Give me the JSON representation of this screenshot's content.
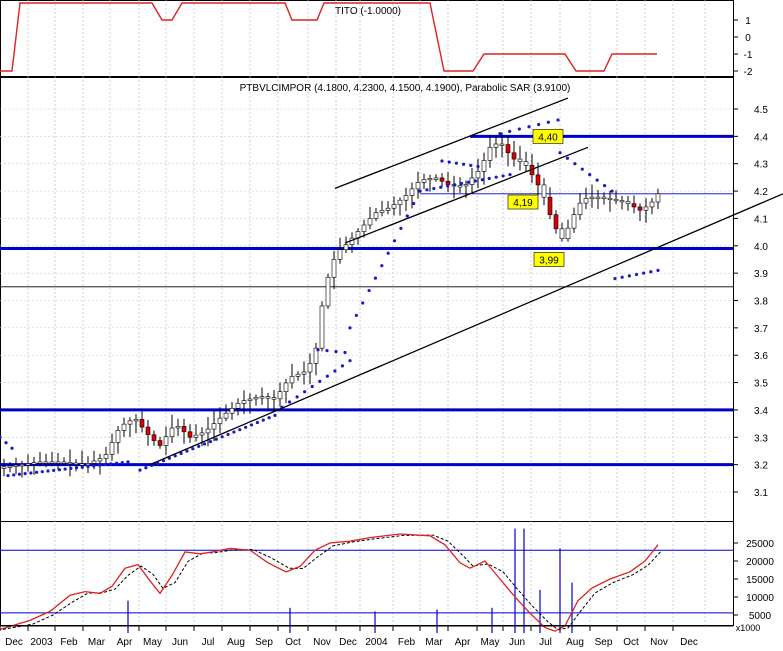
{
  "chart_data": [
    {
      "type": "line",
      "panel": "indicator",
      "title": "TITO (-1.0000)",
      "yticks": [
        "1",
        "0",
        "-1",
        "-2"
      ],
      "ylim": [
        -2.2,
        2.2
      ],
      "series": [
        {
          "color": "#dd2222",
          "points": [
            [
              0,
              -2
            ],
            [
              12,
              -2
            ],
            [
              20,
              2
            ],
            [
              152,
              2
            ],
            [
              162,
              1
            ],
            [
              172,
              1
            ],
            [
              182,
              2
            ],
            [
              285,
              2
            ],
            [
              292,
              1
            ],
            [
              317,
              1
            ],
            [
              324,
              2
            ],
            [
              430,
              2
            ],
            [
              444,
              -2
            ],
            [
              473,
              -2
            ],
            [
              484,
              -1
            ],
            [
              565,
              -1
            ],
            [
              576,
              -2
            ],
            [
              604,
              -2
            ],
            [
              612,
              -1
            ],
            [
              657,
              -1
            ]
          ]
        }
      ]
    },
    {
      "type": "candlestick",
      "panel": "price",
      "title": "PTBVLCIMPOR (4.1800, 4.2300, 4.1500, 4.1900), Parabolic SAR (3.9100)",
      "yticks": [
        "4.5",
        "4.4",
        "4.3",
        "4.2",
        "4.1",
        "4.0",
        "3.9",
        "3.8",
        "3.7",
        "3.6",
        "3.5",
        "3.4",
        "3.3",
        "3.2",
        "3.1"
      ],
      "ylim": [
        3.05,
        4.56
      ],
      "grid": true,
      "annotations": [
        "4,40",
        "4,19",
        "3,99"
      ],
      "horizontal_levels": [
        4.4,
        4.19,
        3.99,
        3.85,
        3.4,
        3.2
      ]
    },
    {
      "type": "line",
      "panel": "volume",
      "yticks": [
        "25000",
        "20000",
        "15000",
        "10000",
        "5000"
      ],
      "ylim": [
        0,
        30000
      ],
      "unit_label": "x1000",
      "series": [
        {
          "style": "solid",
          "color": "#dd2222"
        },
        {
          "style": "dashed",
          "color": "#000000"
        }
      ]
    }
  ],
  "x_axis": {
    "labels": [
      "Dec",
      "2003",
      "Feb",
      "Mar",
      "Apr",
      "May",
      "Jun",
      "Jul",
      "Aug",
      "Sep",
      "Oct",
      "Nov",
      "Dec",
      "2004",
      "Feb",
      "Mar",
      "Apr",
      "May",
      "Jun",
      "Jul",
      "Aug",
      "Sep",
      "Oct",
      "Nov",
      "Dec"
    ]
  },
  "colors": {
    "blue_line": "#0000cc",
    "sar_dots": "#1a1acc",
    "label_bg": "#ffff00",
    "down_candle": "#dd0000"
  }
}
